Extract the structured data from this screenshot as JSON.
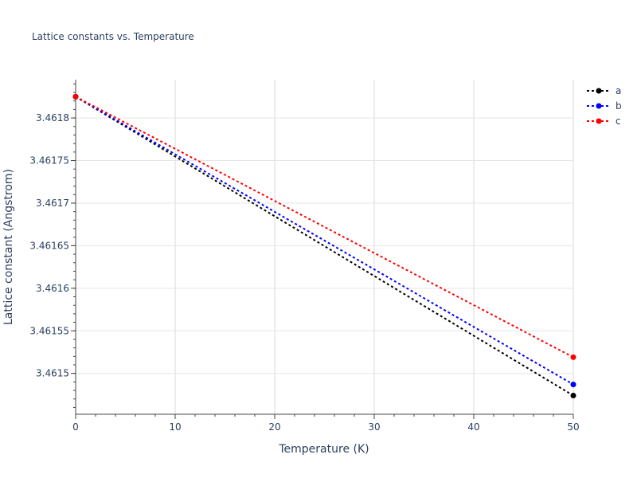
{
  "chart_data": {
    "type": "line",
    "title": "Lattice constants vs. Temperature",
    "xlabel": "Temperature (K)",
    "ylabel": "Lattice constant (Angstrom)",
    "xlim": [
      0,
      50
    ],
    "ylim": [
      3.461452,
      3.461845
    ],
    "x_ticks": [
      0,
      10,
      20,
      30,
      40,
      50
    ],
    "x_tick_labels": [
      "0",
      "10",
      "20",
      "30",
      "40",
      "50"
    ],
    "y_ticks": [
      3.4615,
      3.46155,
      3.4616,
      3.46165,
      3.4617,
      3.46175,
      3.4618
    ],
    "y_tick_labels": [
      "3.4615",
      "3.46155",
      "3.4616",
      "3.46165",
      "3.4617",
      "3.46175",
      "3.4618"
    ],
    "grid": true,
    "legend_position": "top-right",
    "series": [
      {
        "name": "a",
        "color": "#000000",
        "x": [
          0,
          50
        ],
        "y": [
          3.461825,
          3.461474
        ]
      },
      {
        "name": "b",
        "color": "#0000ff",
        "x": [
          0,
          50
        ],
        "y": [
          3.461825,
          3.461487
        ]
      },
      {
        "name": "c",
        "color": "#ff0000",
        "x": [
          0,
          50
        ],
        "y": [
          3.461825,
          3.461519
        ]
      }
    ]
  }
}
